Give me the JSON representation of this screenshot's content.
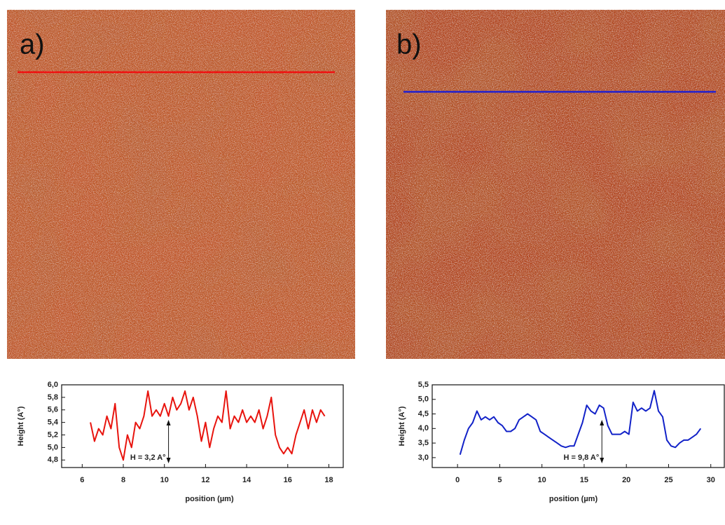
{
  "panel_labels": [
    "a)",
    "b)"
  ],
  "chart_data": [
    {
      "type": "line",
      "xlabel": "position (µm)",
      "ylabel": "Height (A°)",
      "annotation": "H = 3,2 A°",
      "color": "#e8140e",
      "xlim": [
        5,
        18.7
      ],
      "xticks": [
        6,
        8,
        10,
        12,
        14,
        16,
        18
      ],
      "ylim": [
        4.68,
        6.0
      ],
      "yticks": [
        {
          "value": 4.8,
          "label": "4,8"
        },
        {
          "value": 5.0,
          "label": "5,0"
        },
        {
          "value": 5.2,
          "label": "5,2"
        },
        {
          "value": 5.4,
          "label": "5,4"
        },
        {
          "value": 5.6,
          "label": "5,6"
        },
        {
          "value": 5.8,
          "label": "5,8"
        },
        {
          "value": 6.0,
          "label": "6,0"
        }
      ],
      "x": [
        6.4,
        6.6,
        6.8,
        7.0,
        7.2,
        7.4,
        7.6,
        7.8,
        8.0,
        8.2,
        8.4,
        8.6,
        8.8,
        9.0,
        9.2,
        9.4,
        9.6,
        9.8,
        10.0,
        10.2,
        10.4,
        10.6,
        10.8,
        11.0,
        11.2,
        11.4,
        11.6,
        11.8,
        12.0,
        12.2,
        12.4,
        12.6,
        12.8,
        13.0,
        13.2,
        13.4,
        13.6,
        13.8,
        14.0,
        14.2,
        14.4,
        14.6,
        14.8,
        15.0,
        15.2,
        15.4,
        15.6,
        15.8,
        16.0,
        16.2,
        16.4,
        16.6,
        16.8,
        17.0,
        17.2,
        17.4,
        17.6,
        17.8
      ],
      "values": [
        5.4,
        5.1,
        5.3,
        5.2,
        5.5,
        5.3,
        5.7,
        5.0,
        4.8,
        5.2,
        5.0,
        5.4,
        5.3,
        5.5,
        5.9,
        5.5,
        5.6,
        5.5,
        5.7,
        5.5,
        5.8,
        5.6,
        5.7,
        5.9,
        5.6,
        5.8,
        5.5,
        5.1,
        5.4,
        5.0,
        5.3,
        5.5,
        5.4,
        5.9,
        5.3,
        5.5,
        5.4,
        5.6,
        5.4,
        5.5,
        5.4,
        5.6,
        5.3,
        5.5,
        5.8,
        5.2,
        5.0,
        4.9,
        5.0,
        4.9,
        5.2,
        5.4,
        5.6,
        5.3,
        5.6,
        5.4,
        5.6,
        5.5
      ]
    },
    {
      "type": "line",
      "xlabel": "position (µm)",
      "ylabel": "Height (A°)",
      "annotation": "H = 9,8 A°",
      "color": "#1222c8",
      "xlim": [
        -3,
        31.6
      ],
      "xticks": [
        0,
        5,
        10,
        15,
        20,
        25,
        30
      ],
      "ylim": [
        2.66,
        5.5
      ],
      "yticks": [
        {
          "value": 3.0,
          "label": "3,0"
        },
        {
          "value": 3.5,
          "label": "3,5"
        },
        {
          "value": 4.0,
          "label": "4,0"
        },
        {
          "value": 4.5,
          "label": "4,5"
        },
        {
          "value": 5.0,
          "label": "5,0"
        },
        {
          "value": 5.5,
          "label": "5,5"
        }
      ],
      "x": [
        0.3,
        0.8,
        1.3,
        1.8,
        2.3,
        2.8,
        3.3,
        3.8,
        4.3,
        4.8,
        5.3,
        5.8,
        6.3,
        6.8,
        7.3,
        7.8,
        8.3,
        8.8,
        9.3,
        9.8,
        10.3,
        10.8,
        11.3,
        11.8,
        12.3,
        12.8,
        13.3,
        13.8,
        14.3,
        14.8,
        15.3,
        15.8,
        16.3,
        16.8,
        17.3,
        17.8,
        18.3,
        18.8,
        19.3,
        19.8,
        20.3,
        20.8,
        21.3,
        21.8,
        22.3,
        22.8,
        23.3,
        23.8,
        24.3,
        24.8,
        25.3,
        25.8,
        26.3,
        26.8,
        27.3,
        27.8,
        28.3,
        28.8
      ],
      "values": [
        3.1,
        3.6,
        4.0,
        4.2,
        4.6,
        4.3,
        4.4,
        4.3,
        4.4,
        4.2,
        4.1,
        3.9,
        3.9,
        4.0,
        4.3,
        4.4,
        4.5,
        4.4,
        4.3,
        3.9,
        3.8,
        3.7,
        3.6,
        3.5,
        3.4,
        3.35,
        3.4,
        3.4,
        3.8,
        4.2,
        4.8,
        4.6,
        4.5,
        4.8,
        4.7,
        4.1,
        3.8,
        3.8,
        3.8,
        3.9,
        3.8,
        4.9,
        4.6,
        4.7,
        4.6,
        4.7,
        5.3,
        4.6,
        4.4,
        3.6,
        3.4,
        3.35,
        3.5,
        3.6,
        3.6,
        3.7,
        3.8,
        4.0
      ]
    }
  ]
}
